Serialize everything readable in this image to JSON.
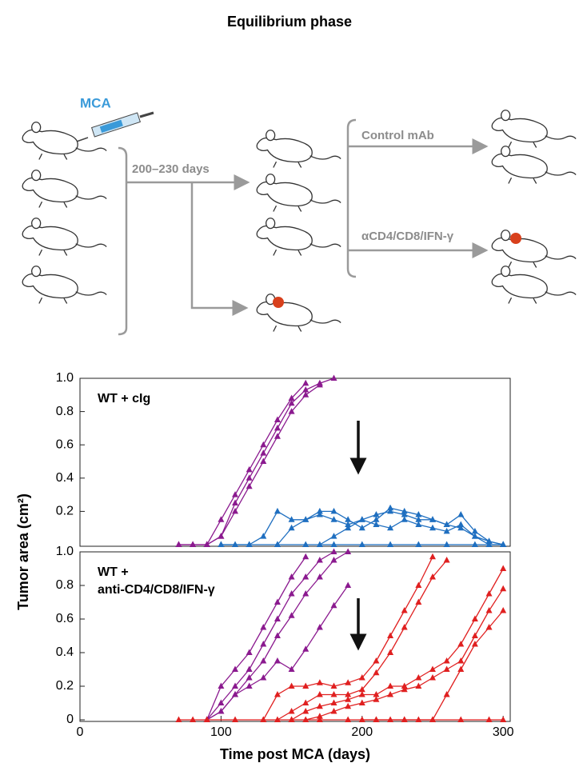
{
  "title": "Equilibrium phase",
  "diagram": {
    "agent": "MCA",
    "interval": "200–230 days",
    "control": "Control mAb",
    "treatment": "αCD4/CD8/IFN-γ"
  },
  "chart_data": [
    {
      "type": "line",
      "annotation": [
        "WT + cIg"
      ],
      "ylabel": "Tumor area (cm²)",
      "xlim": [
        0,
        305
      ],
      "ylim": [
        0,
        1
      ],
      "yticks": [
        0.2,
        0.4,
        0.6,
        0.8,
        {
          "value": 1,
          "label": "1.0"
        }
      ],
      "series": [
        {
          "color": "#8b1a8f",
          "x": [
            70,
            80,
            90,
            100,
            110,
            120,
            130,
            140,
            150,
            160
          ],
          "values": [
            0,
            0,
            0,
            0.15,
            0.3,
            0.45,
            0.6,
            0.75,
            0.88,
            0.97
          ]
        },
        {
          "color": "#8b1a8f",
          "x": [
            70,
            80,
            90,
            100,
            110,
            120,
            130,
            140,
            150,
            160,
            170,
            180
          ],
          "values": [
            0,
            0,
            0,
            0.05,
            0.25,
            0.4,
            0.55,
            0.7,
            0.85,
            0.93,
            0.97,
            1
          ]
        },
        {
          "color": "#8b1a8f",
          "x": [
            90,
            100,
            110,
            120,
            130,
            140,
            150,
            160,
            170
          ],
          "values": [
            0,
            0.05,
            0.2,
            0.35,
            0.5,
            0.65,
            0.8,
            0.9,
            0.96
          ]
        },
        {
          "color": "#1f6fc0",
          "x": [
            100,
            110,
            120,
            130,
            140,
            150,
            160,
            170,
            180,
            190,
            200,
            210,
            220,
            230,
            240,
            250,
            260,
            270,
            280,
            290,
            300
          ],
          "values": [
            0,
            0,
            0,
            0.05,
            0.2,
            0.15,
            0.15,
            0.18,
            0.15,
            0.12,
            0.15,
            0.18,
            0.2,
            0.18,
            0.15,
            0.15,
            0.12,
            0.18,
            0.08,
            0.02,
            0
          ]
        },
        {
          "color": "#1f6fc0",
          "x": [
            140,
            150,
            160,
            170,
            180,
            190,
            200,
            210,
            220,
            230,
            240,
            250,
            260,
            270,
            280,
            290,
            300
          ],
          "values": [
            0,
            0.1,
            0.15,
            0.2,
            0.2,
            0.15,
            0.1,
            0.15,
            0.22,
            0.2,
            0.18,
            0.15,
            0.12,
            0.1,
            0.05,
            0.02,
            0
          ]
        },
        {
          "color": "#1f6fc0",
          "x": [
            170,
            180,
            190,
            200,
            210,
            220,
            230,
            240,
            250,
            260,
            270,
            280,
            290,
            300
          ],
          "values": [
            0,
            0.05,
            0.1,
            0.15,
            0.12,
            0.1,
            0.15,
            0.12,
            0.1,
            0.08,
            0.12,
            0.05,
            0,
            0
          ]
        },
        {
          "color": "#1f6fc0",
          "x": [
            100,
            120,
            140,
            160,
            180,
            200,
            220,
            240,
            260,
            280,
            300
          ],
          "values": [
            0,
            0,
            0,
            0,
            0,
            0,
            0,
            0,
            0,
            0,
            0
          ]
        }
      ]
    },
    {
      "type": "line",
      "annotation": [
        "WT +",
        "anti-CD4/CD8/IFN-γ"
      ],
      "xlabel": "Time post MCA (days)",
      "xlim": [
        0,
        305
      ],
      "ylim": [
        0,
        1
      ],
      "xticks": [
        0,
        100,
        200,
        300
      ],
      "yticks": [
        0,
        0.2,
        0.4,
        0.6,
        0.8,
        {
          "value": 1,
          "label": "1.0"
        }
      ],
      "series": [
        {
          "color": "#8b1a8f",
          "x": [
            90,
            100,
            110,
            120,
            130,
            140,
            150,
            160
          ],
          "values": [
            0,
            0.2,
            0.3,
            0.4,
            0.55,
            0.7,
            0.85,
            0.97
          ]
        },
        {
          "color": "#8b1a8f",
          "x": [
            90,
            100,
            110,
            120,
            130,
            140,
            150,
            160,
            170,
            180
          ],
          "values": [
            0,
            0.1,
            0.2,
            0.3,
            0.45,
            0.6,
            0.75,
            0.85,
            0.95,
            1
          ]
        },
        {
          "color": "#8b1a8f",
          "x": [
            90,
            100,
            110,
            120,
            130,
            140,
            150,
            160,
            170,
            180,
            190
          ],
          "values": [
            0,
            0.05,
            0.15,
            0.25,
            0.35,
            0.5,
            0.62,
            0.75,
            0.85,
            0.95,
            1
          ]
        },
        {
          "color": "#8b1a8f",
          "x": [
            90,
            100,
            110,
            120,
            130,
            140,
            150,
            160,
            170,
            180,
            190
          ],
          "values": [
            0,
            0.05,
            0.15,
            0.2,
            0.25,
            0.35,
            0.3,
            0.42,
            0.55,
            0.68,
            0.8
          ]
        },
        {
          "color": "#e02020",
          "x": [
            130,
            140,
            150,
            160,
            170,
            180,
            190,
            200,
            210,
            220,
            230,
            240,
            250
          ],
          "values": [
            0,
            0.15,
            0.2,
            0.2,
            0.22,
            0.2,
            0.22,
            0.25,
            0.35,
            0.5,
            0.65,
            0.8,
            0.97
          ]
        },
        {
          "color": "#e02020",
          "x": [
            140,
            150,
            160,
            170,
            180,
            190,
            200,
            210,
            220,
            230,
            240,
            250,
            260
          ],
          "values": [
            0,
            0.05,
            0.1,
            0.15,
            0.15,
            0.15,
            0.18,
            0.28,
            0.4,
            0.55,
            0.7,
            0.85,
            0.95
          ]
        },
        {
          "color": "#e02020",
          "x": [
            150,
            160,
            170,
            180,
            190,
            200,
            210,
            220,
            230,
            240,
            250,
            260,
            270,
            280,
            290,
            300
          ],
          "values": [
            0,
            0.05,
            0.08,
            0.1,
            0.12,
            0.15,
            0.15,
            0.2,
            0.2,
            0.25,
            0.3,
            0.35,
            0.45,
            0.6,
            0.75,
            0.9
          ]
        },
        {
          "color": "#e02020",
          "x": [
            160,
            170,
            180,
            190,
            200,
            210,
            220,
            230,
            240,
            250,
            260,
            270,
            280,
            290,
            300
          ],
          "values": [
            0,
            0.02,
            0.05,
            0.08,
            0.1,
            0.12,
            0.15,
            0.18,
            0.2,
            0.25,
            0.3,
            0.35,
            0.5,
            0.65,
            0.78
          ]
        },
        {
          "color": "#e02020",
          "x": [
            200,
            210,
            220,
            230,
            240,
            250,
            260,
            270,
            280,
            290,
            300
          ],
          "values": [
            0,
            0,
            0,
            0,
            0,
            0,
            0.15,
            0.3,
            0.45,
            0.55,
            0.65
          ]
        },
        {
          "color": "#e02020",
          "x": [
            70,
            80,
            90,
            110,
            130,
            150,
            170,
            190,
            210,
            230,
            250,
            270,
            290,
            300
          ],
          "values": [
            0,
            0,
            0,
            0,
            0,
            0,
            0,
            0,
            0,
            0,
            0,
            0,
            0,
            0
          ]
        }
      ]
    }
  ]
}
